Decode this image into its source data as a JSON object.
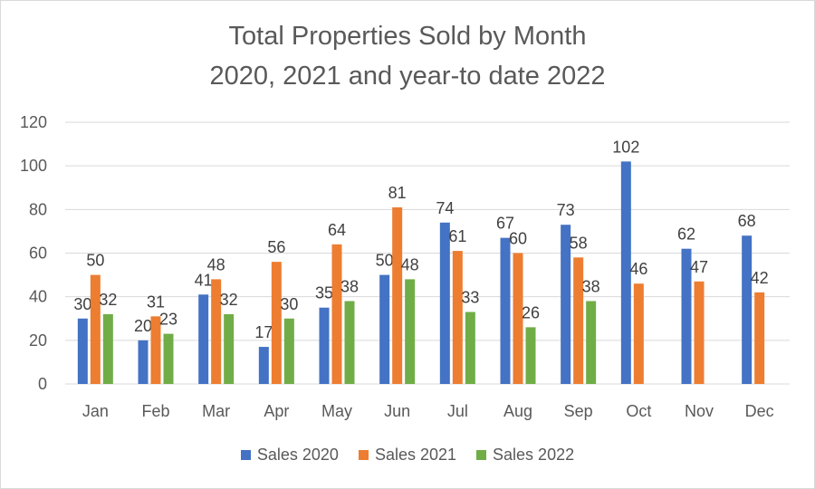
{
  "chart_data": {
    "type": "bar",
    "title": "Total Properties Sold by Month",
    "subtitle": "2020, 2021 and year-to date 2022",
    "xlabel": "",
    "ylabel": "",
    "ylim": [
      0,
      120
    ],
    "yticks": [
      0,
      20,
      40,
      60,
      80,
      100,
      120
    ],
    "grid": true,
    "legend_position": "bottom",
    "categories": [
      "Jan",
      "Feb",
      "Mar",
      "Apr",
      "May",
      "Jun",
      "Jul",
      "Aug",
      "Sep",
      "Oct",
      "Nov",
      "Dec"
    ],
    "series": [
      {
        "name": "Sales 2020",
        "color": "#4472c4",
        "values": [
          30,
          20,
          41,
          17,
          35,
          50,
          74,
          67,
          73,
          102,
          62,
          68
        ]
      },
      {
        "name": "Sales 2021",
        "color": "#ed7d31",
        "values": [
          50,
          31,
          48,
          56,
          64,
          81,
          61,
          60,
          58,
          46,
          47,
          42
        ]
      },
      {
        "name": "Sales 2022",
        "color": "#70ad47",
        "values": [
          32,
          23,
          32,
          30,
          38,
          48,
          33,
          26,
          38,
          null,
          null,
          null
        ]
      }
    ]
  }
}
